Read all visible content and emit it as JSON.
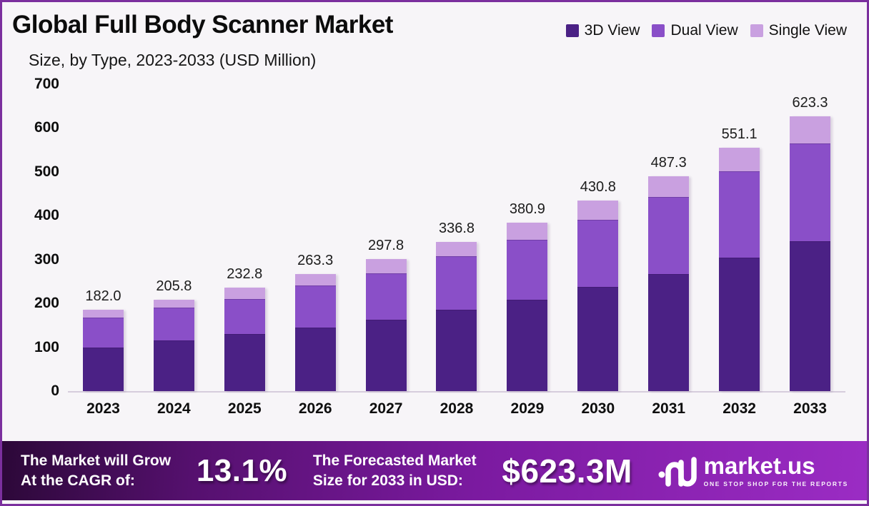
{
  "header": {
    "title": "Global Full Body Scanner Market",
    "subtitle": "Size, by Type, 2023-2033 (USD Million)"
  },
  "legend": {
    "items": [
      {
        "label": "3D View",
        "color": "#4b2185"
      },
      {
        "label": "Dual View",
        "color": "#8a4fc8"
      },
      {
        "label": "Single View",
        "color": "#c9a0e0"
      }
    ]
  },
  "chart_data": {
    "type": "bar",
    "stacked": true,
    "title": "Global Full Body Scanner Market Size, by Type, 2023-2033 (USD Million)",
    "unit": "USD Million",
    "categories": [
      "2023",
      "2024",
      "2025",
      "2026",
      "2027",
      "2028",
      "2029",
      "2030",
      "2031",
      "2032",
      "2033"
    ],
    "series": [
      {
        "name": "3D View",
        "color": "#4b2185",
        "values": [
          97.5,
          113.5,
          128.5,
          144.0,
          161.5,
          184.0,
          206.0,
          235.5,
          266.0,
          303.0,
          341.0
        ]
      },
      {
        "name": "Dual View",
        "color": "#8a4fc8",
        "values": [
          66.5,
          73.5,
          78.5,
          93.0,
          103.5,
          120.0,
          136.0,
          151.5,
          174.0,
          195.0,
          220.0
        ]
      },
      {
        "name": "Single View",
        "color": "#c9a0e0",
        "values": [
          18.0,
          18.8,
          25.8,
          26.3,
          32.8,
          32.8,
          38.9,
          43.8,
          47.3,
          53.1,
          62.3
        ]
      }
    ],
    "totals": [
      182.0,
      205.8,
      232.8,
      263.3,
      297.8,
      336.8,
      380.9,
      430.8,
      487.3,
      551.1,
      623.3
    ],
    "y_axis": {
      "min": 0,
      "max": 700,
      "step": 100,
      "ticks": [
        0,
        100,
        200,
        300,
        400,
        500,
        600,
        700
      ]
    },
    "grid": false,
    "legend_position": "top-right"
  },
  "footer": {
    "cagr_label_line1": "The Market will Grow",
    "cagr_label_line2": "At the CAGR of:",
    "cagr_value": "13.1%",
    "forecast_label_line1": "The Forecasted Market",
    "forecast_label_line2": "Size for 2033 in USD:",
    "forecast_value": "$623.3M",
    "brand": {
      "name": "market.us",
      "tagline": "ONE STOP SHOP FOR THE REPORTS"
    }
  }
}
